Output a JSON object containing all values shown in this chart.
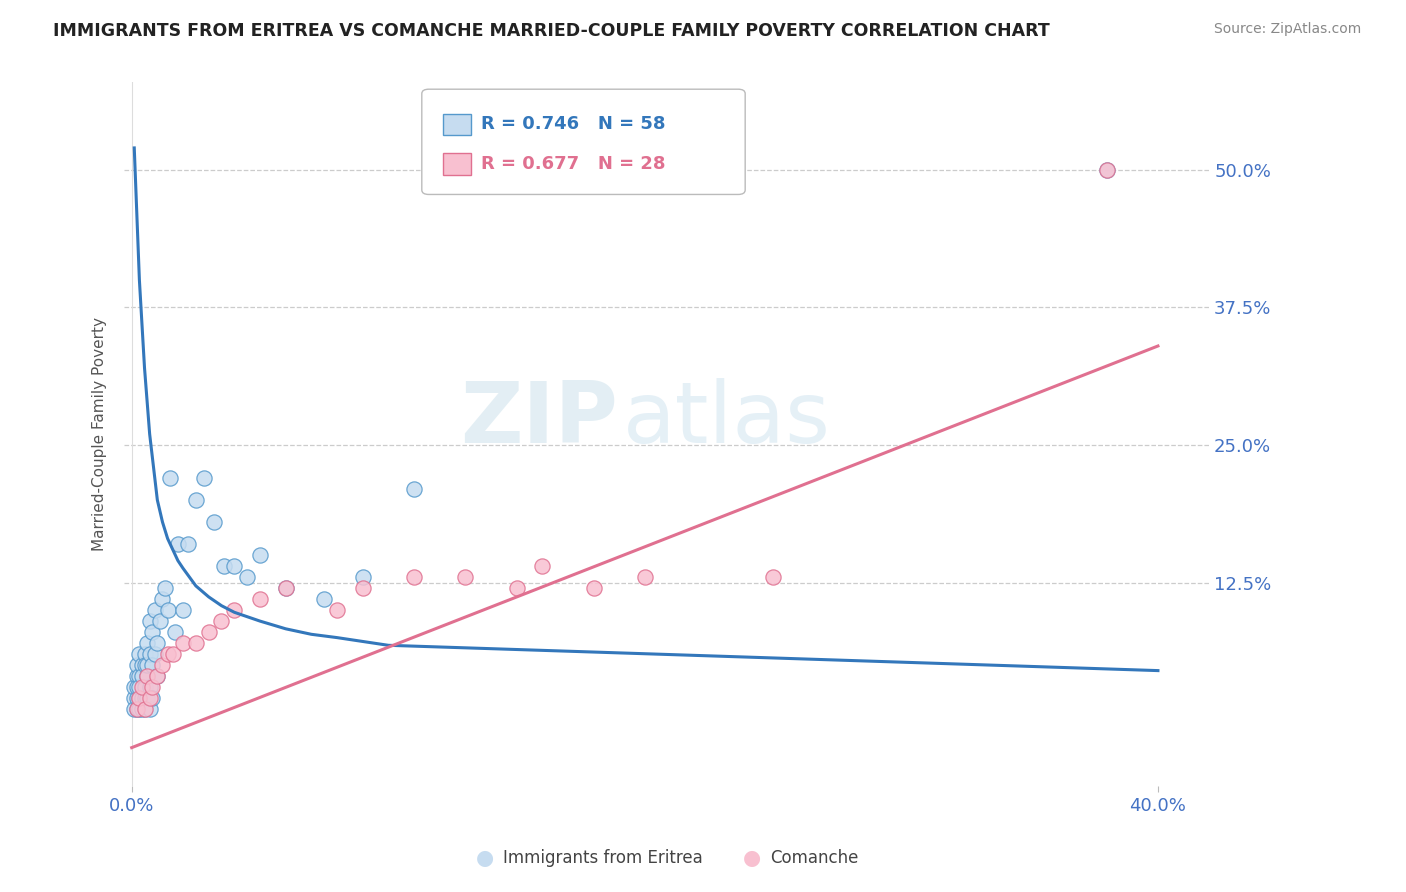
{
  "title": "IMMIGRANTS FROM ERITREA VS COMANCHE MARRIED-COUPLE FAMILY POVERTY CORRELATION CHART",
  "source": "Source: ZipAtlas.com",
  "ylabel": "Married-Couple Family Poverty",
  "xlim": [
    -0.003,
    0.42
  ],
  "ylim": [
    -0.06,
    0.58
  ],
  "xticks": [
    0.0,
    0.4
  ],
  "xtick_labels": [
    "0.0%",
    "40.0%"
  ],
  "yticks": [
    0.125,
    0.25,
    0.375,
    0.5
  ],
  "ytick_labels": [
    "12.5%",
    "25.0%",
    "37.5%",
    "50.0%"
  ],
  "blue_fill_color": "#c6dcf0",
  "blue_edge_color": "#5599cc",
  "blue_line_color": "#3377bb",
  "pink_fill_color": "#f8c0d0",
  "pink_edge_color": "#e07090",
  "pink_line_color": "#e07090",
  "blue_R": 0.746,
  "blue_N": 58,
  "pink_R": 0.677,
  "pink_N": 28,
  "blue_label": "Immigrants from Eritrea",
  "pink_label": "Comanche",
  "watermark_zip": "ZIP",
  "watermark_atlas": "atlas",
  "blue_scatter_x": [
    0.001,
    0.001,
    0.001,
    0.002,
    0.002,
    0.002,
    0.002,
    0.002,
    0.003,
    0.003,
    0.003,
    0.003,
    0.003,
    0.004,
    0.004,
    0.004,
    0.004,
    0.005,
    0.005,
    0.005,
    0.005,
    0.005,
    0.006,
    0.006,
    0.006,
    0.006,
    0.007,
    0.007,
    0.007,
    0.007,
    0.008,
    0.008,
    0.008,
    0.009,
    0.009,
    0.01,
    0.01,
    0.011,
    0.012,
    0.013,
    0.014,
    0.015,
    0.017,
    0.018,
    0.02,
    0.022,
    0.025,
    0.028,
    0.032,
    0.036,
    0.04,
    0.045,
    0.05,
    0.06,
    0.075,
    0.09,
    0.11,
    0.38
  ],
  "blue_scatter_y": [
    0.02,
    0.03,
    0.01,
    0.02,
    0.04,
    0.01,
    0.03,
    0.05,
    0.02,
    0.04,
    0.01,
    0.06,
    0.03,
    0.02,
    0.05,
    0.01,
    0.04,
    0.03,
    0.06,
    0.02,
    0.05,
    0.01,
    0.04,
    0.07,
    0.02,
    0.05,
    0.03,
    0.06,
    0.09,
    0.01,
    0.05,
    0.08,
    0.02,
    0.06,
    0.1,
    0.07,
    0.04,
    0.09,
    0.11,
    0.12,
    0.1,
    0.22,
    0.08,
    0.16,
    0.1,
    0.16,
    0.2,
    0.22,
    0.18,
    0.14,
    0.14,
    0.13,
    0.15,
    0.12,
    0.11,
    0.13,
    0.21,
    0.5
  ],
  "pink_scatter_x": [
    0.002,
    0.003,
    0.004,
    0.005,
    0.006,
    0.007,
    0.008,
    0.01,
    0.012,
    0.014,
    0.016,
    0.02,
    0.025,
    0.03,
    0.035,
    0.04,
    0.05,
    0.06,
    0.08,
    0.09,
    0.11,
    0.13,
    0.15,
    0.16,
    0.18,
    0.2,
    0.25,
    0.38
  ],
  "pink_scatter_y": [
    0.01,
    0.02,
    0.03,
    0.01,
    0.04,
    0.02,
    0.03,
    0.04,
    0.05,
    0.06,
    0.06,
    0.07,
    0.07,
    0.08,
    0.09,
    0.1,
    0.11,
    0.12,
    0.1,
    0.12,
    0.13,
    0.13,
    0.12,
    0.14,
    0.12,
    0.13,
    0.13,
    0.5
  ],
  "blue_curve_x": [
    0.001,
    0.002,
    0.003,
    0.004,
    0.005,
    0.006,
    0.007,
    0.008,
    0.009,
    0.01,
    0.012,
    0.014,
    0.016,
    0.018,
    0.02,
    0.025,
    0.03,
    0.035,
    0.04,
    0.05,
    0.06,
    0.07,
    0.08,
    0.1,
    0.4
  ],
  "blue_curve_y": [
    0.52,
    0.46,
    0.4,
    0.36,
    0.32,
    0.29,
    0.26,
    0.24,
    0.22,
    0.2,
    0.18,
    0.165,
    0.155,
    0.145,
    0.138,
    0.122,
    0.112,
    0.104,
    0.098,
    0.09,
    0.083,
    0.078,
    0.075,
    0.068,
    0.045
  ],
  "pink_line_x": [
    0.0,
    0.4
  ],
  "pink_line_y": [
    -0.025,
    0.34
  ],
  "grid_color": "#cccccc",
  "background_color": "#ffffff",
  "title_color": "#222222",
  "tick_color": "#4472c4",
  "source_color": "#888888",
  "legend_box_color": "#dddddd"
}
